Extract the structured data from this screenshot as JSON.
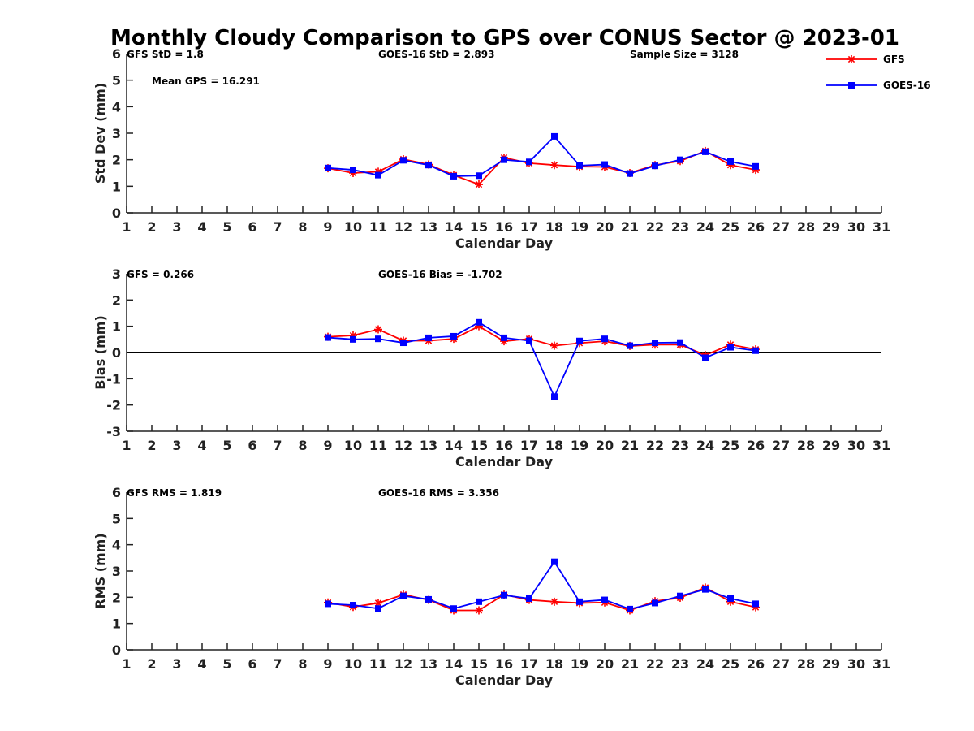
{
  "title": "Monthly Cloudy Comparison to GPS over CONUS Sector @ 2023-01",
  "legend": [
    {
      "name": "GFS",
      "color": "#ff0000",
      "marker": "asterisk"
    },
    {
      "name": "GOES-16",
      "color": "#0000ff",
      "marker": "square"
    }
  ],
  "chart_data": [
    {
      "type": "line",
      "ylabel": "Std Dev (mm)",
      "xlabel": "Calendar Day",
      "xlim": [
        1,
        31
      ],
      "ylim": [
        0,
        6
      ],
      "xticks": [
        1,
        2,
        3,
        4,
        5,
        6,
        7,
        8,
        9,
        10,
        11,
        12,
        13,
        14,
        15,
        16,
        17,
        18,
        19,
        20,
        21,
        22,
        23,
        24,
        25,
        26,
        27,
        28,
        29,
        30,
        31
      ],
      "yticks": [
        0,
        1,
        2,
        3,
        4,
        5,
        6
      ],
      "zero_line": false,
      "annotations": [
        "GFS StD = 1.8",
        "GOES-16 StD = 2.893",
        "Sample Size = 3128",
        "Mean GPS = 16.291"
      ],
      "x": [
        9,
        10,
        11,
        12,
        13,
        14,
        15,
        16,
        17,
        18,
        19,
        20,
        21,
        22,
        23,
        24,
        25,
        26
      ],
      "series": [
        {
          "name": "GFS",
          "values": [
            1.68,
            1.5,
            1.55,
            2.02,
            1.82,
            1.42,
            1.07,
            2.08,
            1.87,
            1.8,
            1.74,
            1.73,
            1.5,
            1.8,
            1.95,
            2.33,
            1.8,
            1.62
          ]
        },
        {
          "name": "GOES-16",
          "values": [
            1.69,
            1.62,
            1.42,
            1.98,
            1.8,
            1.38,
            1.4,
            2.0,
            1.92,
            2.88,
            1.78,
            1.82,
            1.48,
            1.77,
            2.0,
            2.3,
            1.93,
            1.75
          ]
        }
      ]
    },
    {
      "type": "line",
      "ylabel": "Bias (mm)",
      "xlabel": "Calendar Day",
      "xlim": [
        1,
        31
      ],
      "ylim": [
        -3,
        3
      ],
      "xticks": [
        1,
        2,
        3,
        4,
        5,
        6,
        7,
        8,
        9,
        10,
        11,
        12,
        13,
        14,
        15,
        16,
        17,
        18,
        19,
        20,
        21,
        22,
        23,
        24,
        25,
        26,
        27,
        28,
        29,
        30,
        31
      ],
      "yticks": [
        -3,
        -2,
        -1,
        0,
        1,
        2,
        3
      ],
      "zero_line": true,
      "annotations": [
        "GFS = 0.266",
        "GOES-16 Bias = -1.702"
      ],
      "x": [
        9,
        10,
        11,
        12,
        13,
        14,
        15,
        16,
        17,
        18,
        19,
        20,
        21,
        22,
        23,
        24,
        25,
        26
      ],
      "series": [
        {
          "name": "GFS",
          "values": [
            0.6,
            0.65,
            0.88,
            0.45,
            0.45,
            0.52,
            1.0,
            0.43,
            0.52,
            0.26,
            0.36,
            0.43,
            0.25,
            0.3,
            0.3,
            -0.1,
            0.3,
            0.12
          ]
        },
        {
          "name": "GOES-16",
          "values": [
            0.57,
            0.5,
            0.52,
            0.37,
            0.56,
            0.62,
            1.15,
            0.56,
            0.45,
            -1.68,
            0.44,
            0.52,
            0.26,
            0.37,
            0.38,
            -0.2,
            0.2,
            0.07
          ]
        }
      ]
    },
    {
      "type": "line",
      "ylabel": "RMS (mm)",
      "xlabel": "Calendar Day",
      "xlim": [
        1,
        31
      ],
      "ylim": [
        0,
        6
      ],
      "xticks": [
        1,
        2,
        3,
        4,
        5,
        6,
        7,
        8,
        9,
        10,
        11,
        12,
        13,
        14,
        15,
        16,
        17,
        18,
        19,
        20,
        21,
        22,
        23,
        24,
        25,
        26,
        27,
        28,
        29,
        30,
        31
      ],
      "yticks": [
        0,
        1,
        2,
        3,
        4,
        5,
        6
      ],
      "zero_line": false,
      "annotations": [
        "GFS RMS = 1.819",
        "GOES-16 RMS = 3.356"
      ],
      "x": [
        9,
        10,
        11,
        12,
        13,
        14,
        15,
        16,
        17,
        18,
        19,
        20,
        21,
        22,
        23,
        24,
        25,
        26
      ],
      "series": [
        {
          "name": "GFS",
          "values": [
            1.8,
            1.63,
            1.78,
            2.1,
            1.9,
            1.5,
            1.5,
            2.1,
            1.9,
            1.83,
            1.78,
            1.8,
            1.5,
            1.85,
            1.98,
            2.37,
            1.83,
            1.62
          ]
        },
        {
          "name": "GOES-16",
          "values": [
            1.75,
            1.7,
            1.57,
            2.05,
            1.92,
            1.57,
            1.83,
            2.08,
            1.95,
            3.35,
            1.83,
            1.9,
            1.55,
            1.78,
            2.05,
            2.3,
            1.95,
            1.75
          ]
        }
      ]
    }
  ]
}
